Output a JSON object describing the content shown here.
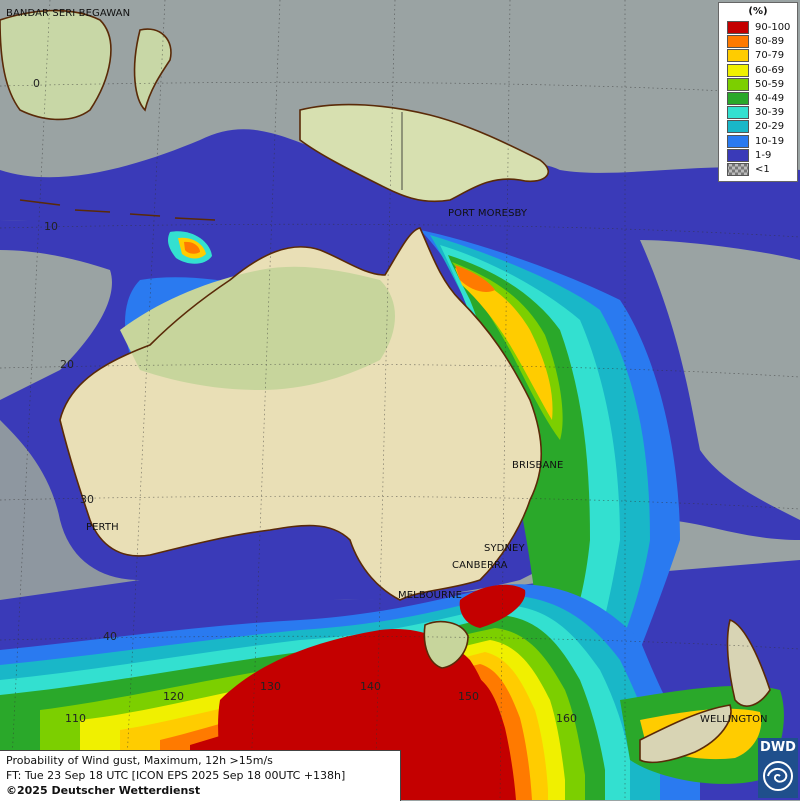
{
  "legend": {
    "unit": "(%)",
    "items": [
      {
        "label": "90-100",
        "color": "#c40000"
      },
      {
        "label": "80-89",
        "color": "#ff7a00"
      },
      {
        "label": "70-79",
        "color": "#ffcc00"
      },
      {
        "label": "60-69",
        "color": "#f0f000"
      },
      {
        "label": "50-59",
        "color": "#7ccf00"
      },
      {
        "label": "40-49",
        "color": "#2aa82a"
      },
      {
        "label": "30-39",
        "color": "#33e0d0"
      },
      {
        "label": "20-29",
        "color": "#19b7c8"
      },
      {
        "label": "10-19",
        "color": "#2a7af0"
      },
      {
        "label": "1-9",
        "color": "#3a3ab8"
      },
      {
        "label": "<1",
        "color": "checker"
      }
    ]
  },
  "cities": {
    "bandar": "BANDAR SERI BEGAWAN",
    "port_moresby": "PORT MORESBY",
    "brisbane": "BRISBANE",
    "perth": "PERTH",
    "sydney": "SYDNEY",
    "canberra": "CANBERRA",
    "melbourne": "MELBOURNE",
    "wellington": "WELLINGTON"
  },
  "grid": {
    "lat_labels": [
      "0",
      "10",
      "20",
      "30",
      "40"
    ],
    "lon_labels": [
      "110",
      "120",
      "130",
      "140",
      "150",
      "160"
    ]
  },
  "info": {
    "line1": "Probability of Wind gust, Maximum, 12h >15m/s",
    "line2": "FT: Tue 23 Sep 18 UTC [ICON EPS 2025 Sep 18 00UTC +138h]",
    "line3": "©2025 Deutscher Wetterdienst"
  },
  "logo": {
    "text": "DWD"
  }
}
